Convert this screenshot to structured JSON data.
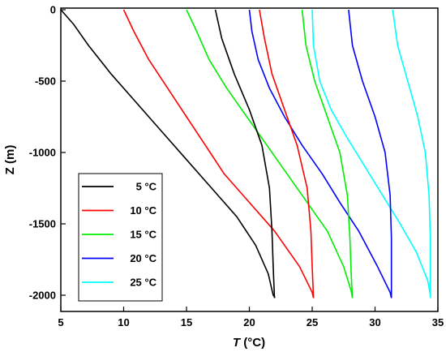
{
  "chart_data": {
    "type": "line",
    "xlabel_italic": "T",
    "xlabel_unit": " (°C)",
    "ylabel": "Z (m)",
    "xlim": [
      5,
      35
    ],
    "ylim": [
      -2100,
      0
    ],
    "x_ticks": [
      5,
      10,
      15,
      20,
      25,
      30,
      35
    ],
    "y_ticks": [
      0,
      -500,
      -1000,
      -1500,
      -2000
    ],
    "legend_placement": "lower-left",
    "grid": false,
    "series": [
      {
        "name": "5 °C",
        "color": "#000000",
        "points": [
          [
            5,
            0
          ],
          [
            6,
            -100
          ],
          [
            7.2,
            -250
          ],
          [
            9,
            -450
          ],
          [
            11,
            -650
          ],
          [
            13,
            -850
          ],
          [
            15,
            -1050
          ],
          [
            17,
            -1250
          ],
          [
            19,
            -1450
          ],
          [
            20.5,
            -1650
          ],
          [
            21.5,
            -1850
          ],
          [
            21.9,
            -2000
          ],
          [
            22,
            -2010
          ],
          [
            22,
            -2020
          ]
        ]
      },
      {
        "name": "10 °C",
        "color": "#ff0000",
        "points": [
          [
            10,
            0
          ],
          [
            10.8,
            -150
          ],
          [
            12,
            -350
          ],
          [
            13.5,
            -550
          ],
          [
            15,
            -750
          ],
          [
            16.5,
            -950
          ],
          [
            18,
            -1150
          ],
          [
            20,
            -1350
          ],
          [
            22,
            -1550
          ],
          [
            24,
            -1800
          ],
          [
            25,
            -1980
          ],
          [
            25.1,
            -2020
          ]
        ]
      },
      {
        "name": "15 °C",
        "color": "#00ee00",
        "points": [
          [
            15,
            0
          ],
          [
            15.8,
            -150
          ],
          [
            16.8,
            -350
          ],
          [
            18.2,
            -550
          ],
          [
            19.8,
            -750
          ],
          [
            21.4,
            -950
          ],
          [
            23,
            -1150
          ],
          [
            24.6,
            -1350
          ],
          [
            26.2,
            -1550
          ],
          [
            27.5,
            -1800
          ],
          [
            28.1,
            -1970
          ],
          [
            28.2,
            -2020
          ]
        ]
      },
      {
        "name": "20 °C",
        "color": "#0000ff",
        "points": [
          [
            20,
            0
          ],
          [
            20.2,
            -150
          ],
          [
            20.7,
            -350
          ],
          [
            21.6,
            -550
          ],
          [
            22.8,
            -750
          ],
          [
            24.2,
            -950
          ],
          [
            25.8,
            -1150
          ],
          [
            27.2,
            -1350
          ],
          [
            28.7,
            -1550
          ],
          [
            30.2,
            -1800
          ],
          [
            31.2,
            -1980
          ],
          [
            31.3,
            -2020
          ]
        ]
      },
      {
        "name": "25 °C",
        "color": "#00ffff",
        "points": [
          [
            25,
            0
          ],
          [
            25.1,
            -250
          ],
          [
            25.6,
            -500
          ],
          [
            26.5,
            -700
          ],
          [
            27.8,
            -900
          ],
          [
            29.2,
            -1100
          ],
          [
            30.6,
            -1300
          ],
          [
            32,
            -1500
          ],
          [
            33.3,
            -1700
          ],
          [
            34.2,
            -1900
          ],
          [
            34.4,
            -2000
          ],
          [
            34.4,
            -2020
          ]
        ]
      }
    ],
    "overlay_series": [
      {
        "color": "#000000",
        "points": [
          [
            17.3,
            0
          ],
          [
            17.8,
            -200
          ],
          [
            18.8,
            -450
          ],
          [
            20,
            -700
          ],
          [
            21,
            -950
          ],
          [
            21.6,
            -1250
          ],
          [
            21.8,
            -1550
          ],
          [
            21.9,
            -1800
          ],
          [
            22,
            -2020
          ]
        ]
      },
      {
        "color": "#ff0000",
        "points": [
          [
            20.8,
            0
          ],
          [
            21.2,
            -200
          ],
          [
            21.8,
            -450
          ],
          [
            22.8,
            -700
          ],
          [
            23.8,
            -950
          ],
          [
            24.6,
            -1250
          ],
          [
            24.9,
            -1550
          ],
          [
            25,
            -1800
          ],
          [
            25.1,
            -2020
          ]
        ]
      },
      {
        "color": "#00ee00",
        "points": [
          [
            24.2,
            0
          ],
          [
            24.5,
            -250
          ],
          [
            25.2,
            -500
          ],
          [
            26.2,
            -750
          ],
          [
            27.2,
            -1000
          ],
          [
            27.8,
            -1300
          ],
          [
            28,
            -1600
          ],
          [
            28.1,
            -1850
          ],
          [
            28.2,
            -2020
          ]
        ]
      },
      {
        "color": "#0000ff",
        "points": [
          [
            27.9,
            0
          ],
          [
            28.2,
            -250
          ],
          [
            29,
            -500
          ],
          [
            30,
            -750
          ],
          [
            30.8,
            -1000
          ],
          [
            31.2,
            -1300
          ],
          [
            31.3,
            -1600
          ],
          [
            31.3,
            -1850
          ],
          [
            31.3,
            -2020
          ]
        ]
      },
      {
        "color": "#00ffff",
        "points": [
          [
            31.4,
            0
          ],
          [
            31.8,
            -250
          ],
          [
            32.6,
            -500
          ],
          [
            33.4,
            -750
          ],
          [
            34,
            -1000
          ],
          [
            34.3,
            -1300
          ],
          [
            34.4,
            -1600
          ],
          [
            34.4,
            -2020
          ]
        ]
      }
    ]
  }
}
